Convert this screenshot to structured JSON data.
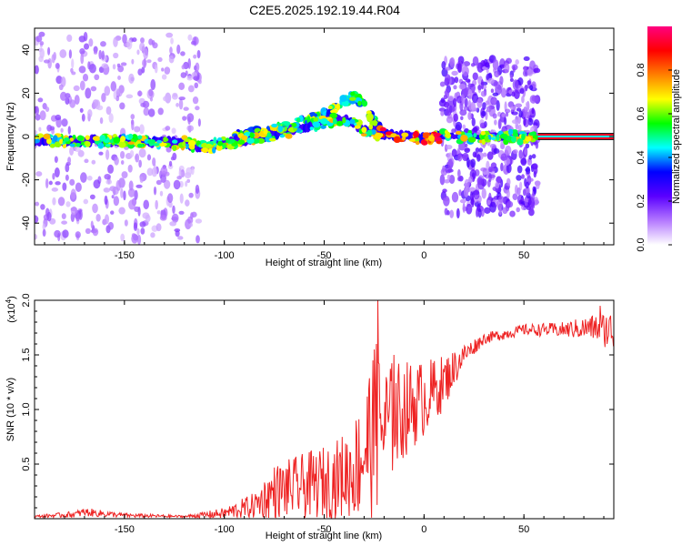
{
  "figure_title": "C2E5.2025.192.19.44.R04",
  "chart_data": [
    {
      "type": "heatmap",
      "name": "spectrogram",
      "xlabel": "Height of straight line (km)",
      "ylabel": "Frequency (Hz)",
      "xlim": [
        -195,
        95
      ],
      "ylim": [
        -50,
        50
      ],
      "xticks": [
        -150,
        -100,
        -50,
        0,
        50
      ],
      "yticks": [
        -40,
        -20,
        0,
        20,
        40
      ],
      "colorbar": {
        "label": "Normalized spectral amplitude",
        "range": [
          0,
          1
        ],
        "ticks": [
          0.0,
          0.2,
          0.4,
          0.6,
          0.8
        ],
        "tick_labels": [
          "0.0",
          "0.2",
          "0.4",
          "0.6",
          "0.8"
        ],
        "colormap": [
          "#ffffff",
          "#b478ff",
          "#5a00ff",
          "#0000ff",
          "#00ffff",
          "#00ff00",
          "#ffff00",
          "#ff8000",
          "#ff0000",
          "#ff0080"
        ]
      },
      "ridge": [
        {
          "x": -195,
          "f": -2
        },
        {
          "x": -150,
          "f": -2
        },
        {
          "x": -120,
          "f": -3
        },
        {
          "x": -110,
          "f": -5
        },
        {
          "x": -100,
          "f": -3
        },
        {
          "x": -80,
          "f": 0
        },
        {
          "x": -60,
          "f": 4
        },
        {
          "x": -50,
          "f": 7
        },
        {
          "x": -40,
          "f": 8
        },
        {
          "x": -30,
          "f": 3
        },
        {
          "x": -20,
          "f": 1
        },
        {
          "x": -10,
          "f": 0
        },
        {
          "x": 0,
          "f": -1
        },
        {
          "x": 10,
          "f": 0
        },
        {
          "x": 50,
          "f": 0
        },
        {
          "x": 57,
          "f": 0
        },
        {
          "x": 95,
          "f": 0
        }
      ],
      "upper_branch": [
        {
          "x": -95,
          "f": 0
        },
        {
          "x": -70,
          "f": 4
        },
        {
          "x": -50,
          "f": 10
        },
        {
          "x": -40,
          "f": 16
        },
        {
          "x": -35,
          "f": 19
        },
        {
          "x": -30,
          "f": 14
        },
        {
          "x": -25,
          "f": 7
        },
        {
          "x": -22,
          "f": 3
        }
      ],
      "wide_scatter_regions": [
        {
          "x_from": -195,
          "x_to": -112,
          "f_from": -48,
          "f_to": 48
        },
        {
          "x_from": 9,
          "x_to": 57,
          "f_from": -36,
          "f_to": 36
        }
      ],
      "pure_tone_region": {
        "x_from": 57,
        "x_to": 95,
        "f": 0
      }
    },
    {
      "type": "line",
      "name": "snr",
      "xlabel": "Height of straight line (km)",
      "ylabel": "SNR (10 * v/v)",
      "y_multiplier_label": "(x10",
      "y_multiplier_exp": "4",
      "y_multiplier_close": ")",
      "xlim": [
        -195,
        95
      ],
      "ylim": [
        0,
        2.0
      ],
      "xticks": [
        -150,
        -100,
        -50,
        0,
        50
      ],
      "yticks": [
        0.5,
        1.0,
        1.5,
        2.0
      ],
      "ytick_labels": [
        "0.5",
        "1.0",
        "1.5",
        "2.0"
      ],
      "color": "#ee2222",
      "envelope": [
        {
          "x": -195,
          "mean": 0.02,
          "spread": 0.01
        },
        {
          "x": -175,
          "mean": 0.04,
          "spread": 0.03
        },
        {
          "x": -170,
          "mean": 0.06,
          "spread": 0.04
        },
        {
          "x": -150,
          "mean": 0.03,
          "spread": 0.02
        },
        {
          "x": -120,
          "mean": 0.02,
          "spread": 0.01
        },
        {
          "x": -100,
          "mean": 0.05,
          "spread": 0.05
        },
        {
          "x": -85,
          "mean": 0.12,
          "spread": 0.12
        },
        {
          "x": -75,
          "mean": 0.25,
          "spread": 0.25
        },
        {
          "x": -60,
          "mean": 0.3,
          "spread": 0.3
        },
        {
          "x": -45,
          "mean": 0.35,
          "spread": 0.35
        },
        {
          "x": -35,
          "mean": 0.45,
          "spread": 0.45
        },
        {
          "x": -25,
          "mean": 0.8,
          "spread": 0.8
        },
        {
          "x": -20,
          "mean": 0.85,
          "spread": 0.6
        },
        {
          "x": -10,
          "mean": 1.0,
          "spread": 0.45
        },
        {
          "x": 0,
          "mean": 1.1,
          "spread": 0.35
        },
        {
          "x": 10,
          "mean": 1.25,
          "spread": 0.25
        },
        {
          "x": 20,
          "mean": 1.5,
          "spread": 0.1
        },
        {
          "x": 30,
          "mean": 1.65,
          "spread": 0.05
        },
        {
          "x": 50,
          "mean": 1.73,
          "spread": 0.05
        },
        {
          "x": 70,
          "mean": 1.73,
          "spread": 0.07
        },
        {
          "x": 85,
          "mean": 1.75,
          "spread": 0.12
        },
        {
          "x": 95,
          "mean": 1.72,
          "spread": 0.2
        }
      ],
      "peaks": [
        {
          "x": -23,
          "y": 2.0
        },
        {
          "x": -24,
          "y": 1.6
        },
        {
          "x": -25,
          "y": 1.55
        },
        {
          "x": -15,
          "y": 1.5
        },
        {
          "x": 88,
          "y": 1.95
        }
      ]
    }
  ]
}
